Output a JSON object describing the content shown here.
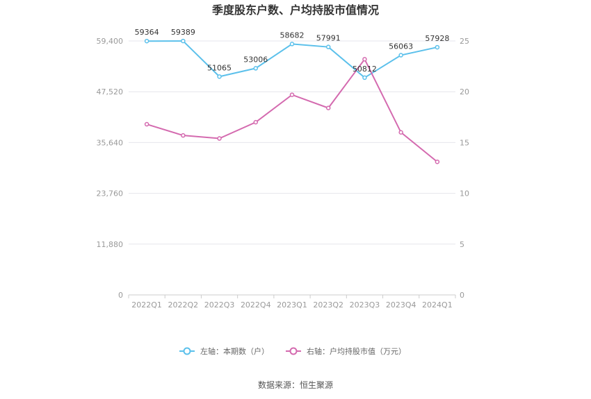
{
  "chart_data": {
    "type": "line",
    "title": "季度股东户数、户均持股市值情况",
    "categories": [
      "2022Q1",
      "2022Q2",
      "2022Q3",
      "2022Q4",
      "2023Q1",
      "2023Q2",
      "2023Q3",
      "2023Q4",
      "2024Q1"
    ],
    "y_left": {
      "ticks": [
        "0",
        "11,880",
        "23,760",
        "35,640",
        "47,520",
        "59,400"
      ],
      "lim": [
        0,
        59400
      ]
    },
    "y_right": {
      "ticks": [
        "0",
        "5",
        "10",
        "15",
        "20",
        "25"
      ],
      "lim": [
        0,
        25
      ]
    },
    "grid": true,
    "legend_position": "bottom",
    "series": [
      {
        "name": "左轴：本期数（户）",
        "axis": "left",
        "color": "#5bc0eb",
        "values": [
          59364,
          59389,
          51065,
          53006,
          58682,
          57991,
          50812,
          56063,
          57928
        ],
        "labels": [
          "59364",
          "59389",
          "51065",
          "53006",
          "58682",
          "57991",
          "50812",
          "56063",
          "57928"
        ]
      },
      {
        "name": "右轴：户均持股市值（万元）",
        "axis": "right",
        "color": "#d46aaf",
        "values": [
          16.8,
          15.7,
          15.4,
          17.0,
          19.7,
          18.4,
          23.2,
          16.0,
          13.1
        ]
      }
    ]
  },
  "source": "数据来源：恒生聚源"
}
